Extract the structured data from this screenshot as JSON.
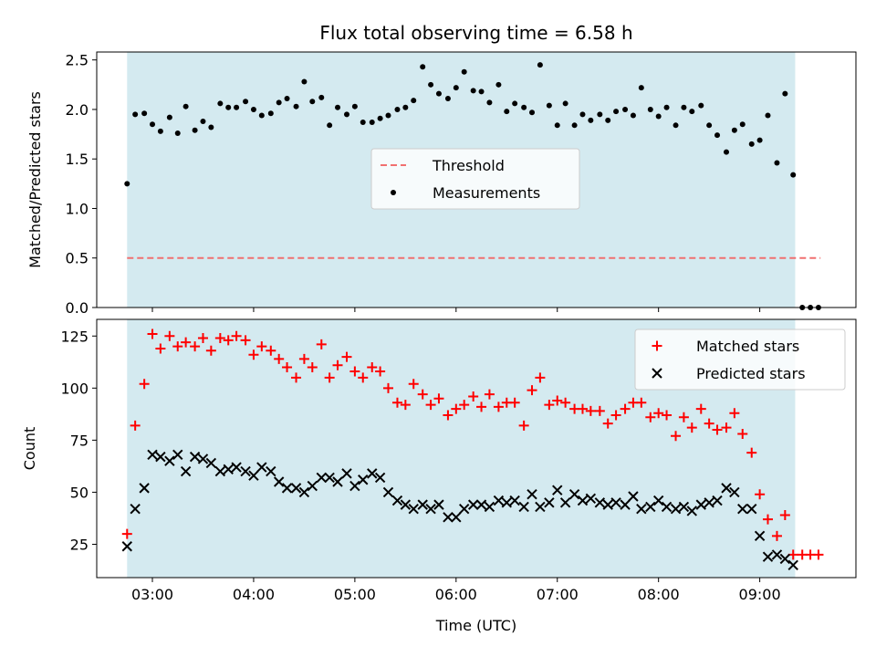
{
  "title": "Flux total observing time = 6.58 h",
  "colors": {
    "shade": "#d4eaf0",
    "threshold": "#f07070",
    "matched": "#ff0000",
    "predicted": "#000000",
    "measurement": "#000000"
  },
  "chart_data": [
    {
      "type": "scatter",
      "ylabel": "Matched/Predicted stars",
      "xlim": [
        2.45,
        9.95
      ],
      "ylim": [
        0,
        2.58
      ],
      "yticks": [
        0.0,
        0.5,
        1.0,
        1.5,
        2.0,
        2.5
      ],
      "ytick_labels": [
        "0.0",
        "0.5",
        "1.0",
        "1.5",
        "2.0",
        "2.5"
      ],
      "shaded_x_range": [
        2.75,
        9.35
      ],
      "legend": {
        "position": "center",
        "entries": [
          "Threshold",
          "Measurements"
        ]
      },
      "threshold": {
        "name": "Threshold",
        "y": 0.5,
        "x_range": [
          2.75,
          9.6
        ]
      },
      "series": [
        {
          "name": "Measurements",
          "marker": "dot",
          "x": [
            2.75,
            2.83,
            2.92,
            3.0,
            3.08,
            3.17,
            3.25,
            3.33,
            3.42,
            3.5,
            3.58,
            3.67,
            3.75,
            3.83,
            3.92,
            4.0,
            4.08,
            4.17,
            4.25,
            4.33,
            4.42,
            4.5,
            4.58,
            4.67,
            4.75,
            4.83,
            4.92,
            5.0,
            5.08,
            5.17,
            5.25,
            5.33,
            5.42,
            5.5,
            5.58,
            5.67,
            5.75,
            5.83,
            5.92,
            6.0,
            6.08,
            6.17,
            6.25,
            6.33,
            6.42,
            6.5,
            6.58,
            6.67,
            6.75,
            6.83,
            6.92,
            7.0,
            7.08,
            7.17,
            7.25,
            7.33,
            7.42,
            7.5,
            7.58,
            7.67,
            7.75,
            7.83,
            7.92,
            8.0,
            8.08,
            8.17,
            8.25,
            8.33,
            8.42,
            8.5,
            8.58,
            8.67,
            8.75,
            8.83,
            8.92,
            9.0,
            9.08,
            9.17,
            9.25,
            9.33,
            9.42,
            9.5,
            9.58
          ],
          "y": [
            1.25,
            1.95,
            1.96,
            1.85,
            1.78,
            1.92,
            1.76,
            2.03,
            1.79,
            1.88,
            1.82,
            2.06,
            2.02,
            2.02,
            2.08,
            2.0,
            1.94,
            1.96,
            2.07,
            2.11,
            2.03,
            2.28,
            2.08,
            2.12,
            1.84,
            2.02,
            1.95,
            2.03,
            1.87,
            1.87,
            1.91,
            1.94,
            2.0,
            2.02,
            2.09,
            2.43,
            2.25,
            2.16,
            2.11,
            2.22,
            2.38,
            2.19,
            2.18,
            2.07,
            2.25,
            1.98,
            2.06,
            2.02,
            1.97,
            2.45,
            2.04,
            1.84,
            2.06,
            1.84,
            1.95,
            1.89,
            1.95,
            1.89,
            1.98,
            2.0,
            1.94,
            2.22,
            2.0,
            1.93,
            2.02,
            1.84,
            2.02,
            1.98,
            2.04,
            1.84,
            1.74,
            1.57,
            1.79,
            1.85,
            1.65,
            1.69,
            1.94,
            1.46,
            2.16,
            1.34,
            0.0,
            0.0,
            0.0
          ]
        }
      ]
    },
    {
      "type": "scatter",
      "xlabel": "Time (UTC)",
      "ylabel": "Count",
      "xlim": [
        2.45,
        9.95
      ],
      "ylim": [
        9,
        133
      ],
      "xticks": [
        3,
        4,
        5,
        6,
        7,
        8,
        9
      ],
      "xtick_labels": [
        "03:00",
        "04:00",
        "05:00",
        "06:00",
        "07:00",
        "08:00",
        "09:00"
      ],
      "yticks": [
        25,
        50,
        75,
        100,
        125
      ],
      "ytick_labels": [
        "25",
        "50",
        "75",
        "100",
        "125"
      ],
      "shaded_x_range": [
        2.75,
        9.35
      ],
      "legend": {
        "position": "top-right",
        "entries": [
          "Matched stars",
          "Predicted stars"
        ]
      },
      "series": [
        {
          "name": "Matched stars",
          "marker": "plus",
          "x": [
            2.75,
            2.83,
            2.92,
            3.0,
            3.08,
            3.17,
            3.25,
            3.33,
            3.42,
            3.5,
            3.58,
            3.67,
            3.75,
            3.83,
            3.92,
            4.0,
            4.08,
            4.17,
            4.25,
            4.33,
            4.42,
            4.5,
            4.58,
            4.67,
            4.75,
            4.83,
            4.92,
            5.0,
            5.08,
            5.17,
            5.25,
            5.33,
            5.42,
            5.5,
            5.58,
            5.67,
            5.75,
            5.83,
            5.92,
            6.0,
            6.08,
            6.17,
            6.25,
            6.33,
            6.42,
            6.5,
            6.58,
            6.67,
            6.75,
            6.83,
            6.92,
            7.0,
            7.08,
            7.17,
            7.25,
            7.33,
            7.42,
            7.5,
            7.58,
            7.67,
            7.75,
            7.83,
            7.92,
            8.0,
            8.08,
            8.17,
            8.25,
            8.33,
            8.42,
            8.5,
            8.58,
            8.67,
            8.75,
            8.83,
            8.92,
            9.0,
            9.08,
            9.17,
            9.25,
            9.33,
            9.42,
            9.5,
            9.58
          ],
          "y": [
            30,
            82,
            102,
            126,
            119,
            125,
            120,
            122,
            120,
            124,
            118,
            124,
            123,
            125,
            123,
            116,
            120,
            118,
            114,
            110,
            105,
            114,
            110,
            121,
            105,
            111,
            115,
            108,
            105,
            110,
            108,
            100,
            93,
            92,
            102,
            97,
            92,
            95,
            87,
            90,
            92,
            96,
            91,
            97,
            91,
            93,
            93,
            82,
            99,
            105,
            92,
            94,
            93,
            90,
            90,
            89,
            89,
            83,
            87,
            90,
            93,
            93,
            86,
            88,
            87,
            77,
            86,
            81,
            90,
            83,
            80,
            81,
            88,
            78,
            69,
            49,
            37,
            29,
            39,
            20,
            20,
            20,
            20
          ]
        },
        {
          "name": "Predicted stars",
          "marker": "x",
          "x": [
            2.75,
            2.83,
            2.92,
            3.0,
            3.08,
            3.17,
            3.25,
            3.33,
            3.42,
            3.5,
            3.58,
            3.67,
            3.75,
            3.83,
            3.92,
            4.0,
            4.08,
            4.17,
            4.25,
            4.33,
            4.42,
            4.5,
            4.58,
            4.67,
            4.75,
            4.83,
            4.92,
            5.0,
            5.08,
            5.17,
            5.25,
            5.33,
            5.42,
            5.5,
            5.58,
            5.67,
            5.75,
            5.83,
            5.92,
            6.0,
            6.08,
            6.17,
            6.25,
            6.33,
            6.42,
            6.5,
            6.58,
            6.67,
            6.75,
            6.83,
            6.92,
            7.0,
            7.08,
            7.17,
            7.25,
            7.33,
            7.42,
            7.5,
            7.58,
            7.67,
            7.75,
            7.83,
            7.92,
            8.0,
            8.08,
            8.17,
            8.25,
            8.33,
            8.42,
            8.5,
            8.58,
            8.67,
            8.75,
            8.83,
            8.92,
            9.0,
            9.08,
            9.17,
            9.25,
            9.33
          ],
          "y": [
            24,
            42,
            52,
            68,
            67,
            65,
            68,
            60,
            67,
            66,
            64,
            60,
            61,
            62,
            60,
            58,
            62,
            60,
            55,
            52,
            52,
            50,
            53,
            57,
            57,
            55,
            59,
            53,
            56,
            59,
            57,
            50,
            46,
            44,
            42,
            44,
            42,
            44,
            38,
            38,
            42,
            44,
            44,
            43,
            46,
            45,
            46,
            43,
            49,
            43,
            45,
            51,
            45,
            49,
            46,
            47,
            45,
            44,
            45,
            44,
            48,
            42,
            43,
            46,
            43,
            42,
            43,
            41,
            44,
            45,
            46,
            52,
            50,
            42,
            42,
            29,
            19,
            20,
            18,
            15
          ]
        }
      ]
    }
  ]
}
